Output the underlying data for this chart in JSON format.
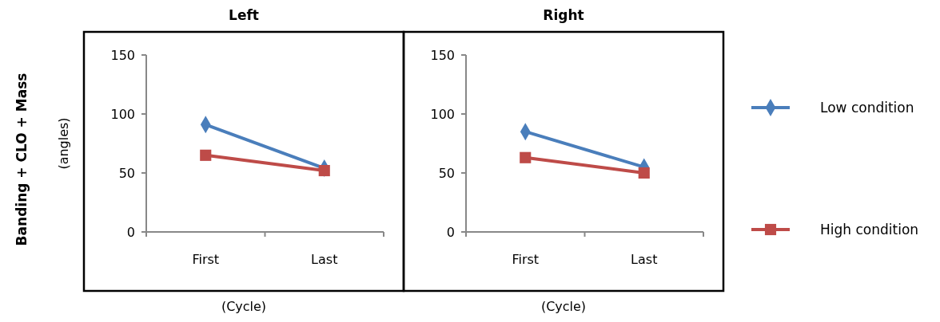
{
  "chart_data": [
    {
      "type": "line",
      "title": "Left",
      "xlabel": "(Cycle)",
      "ylabel": "(angles)",
      "annotations": [
        "Banding + CLO + Mass"
      ],
      "categories": [
        "First",
        "Last"
      ],
      "ylim": [
        0,
        150
      ],
      "yticks": [
        0,
        50,
        100,
        150
      ],
      "grid": false,
      "legend": false,
      "line_style": "solid",
      "series": [
        {
          "color": "#4a7ebb",
          "marker": "diamond",
          "values": [
            91,
            54
          ]
        },
        {
          "color": "#be4b48",
          "marker": "square",
          "values": [
            65,
            52
          ]
        }
      ]
    },
    {
      "type": "line",
      "title": "Right",
      "xlabel": "(Cycle)",
      "categories": [
        "First",
        "Last"
      ],
      "ylim": [
        0,
        150
      ],
      "yticks": [
        0,
        50,
        100,
        150
      ],
      "grid": false,
      "legend": "right",
      "line_style": "solid",
      "series": [
        {
          "name": "Low condition",
          "color": "#4a7ebb",
          "marker": "diamond",
          "values": [
            85,
            55
          ]
        },
        {
          "name": "High condition",
          "color": "#be4b48",
          "marker": "square",
          "values": [
            63,
            50
          ]
        }
      ]
    }
  ]
}
